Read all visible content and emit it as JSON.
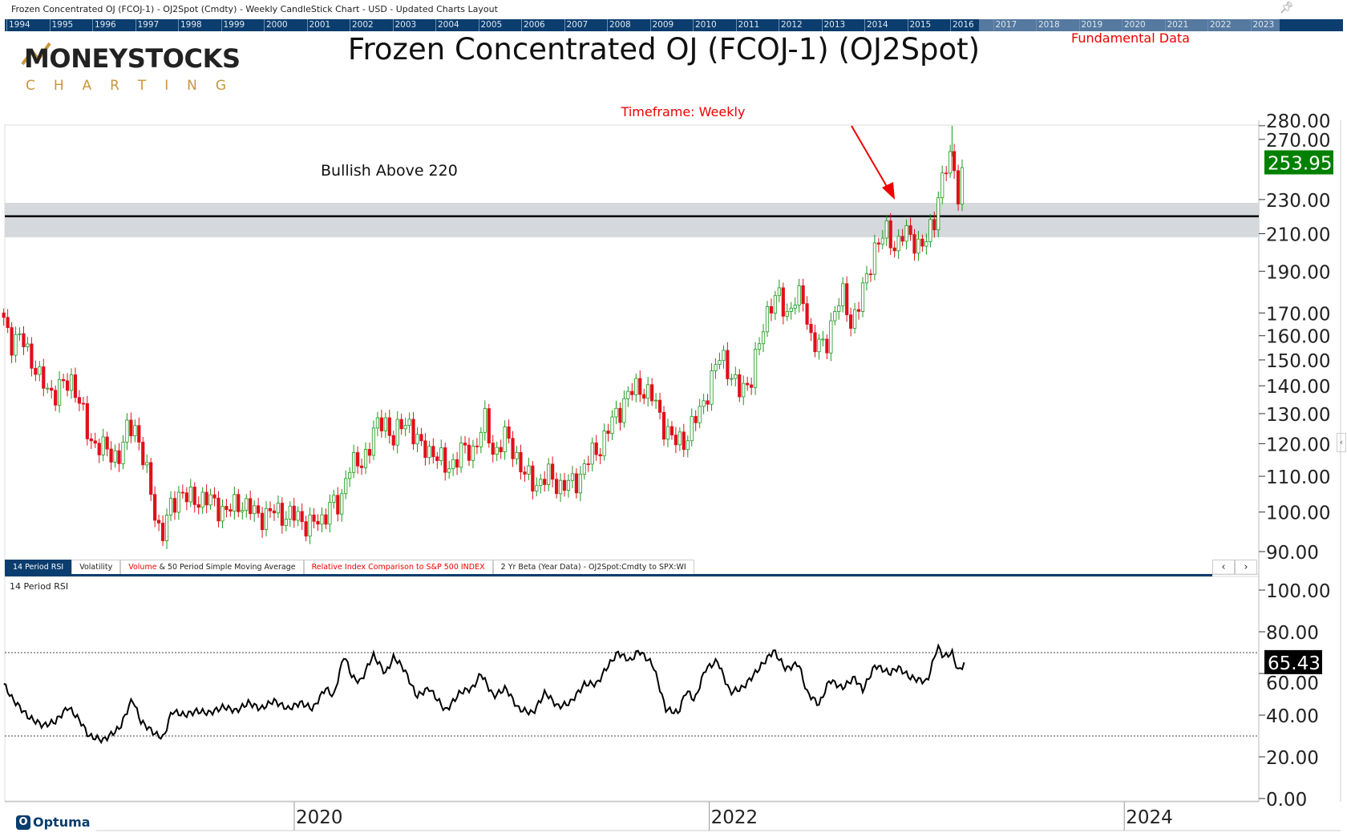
{
  "window_title": "Frozen Concentrated OJ (FCOJ-1) - OJ2Spot (Cmdty) - Weekly CandleStick Chart - USD - Updated Charts Layout",
  "navigator_years": [
    "1994",
    "1995",
    "1996",
    "1997",
    "1998",
    "1999",
    "2000",
    "2001",
    "2002",
    "2003",
    "2004",
    "2005",
    "2006",
    "2007",
    "2008",
    "2009",
    "2010",
    "2011",
    "2012",
    "2013",
    "2014",
    "2015",
    "2016",
    "2017",
    "2018",
    "2019",
    "2020",
    "2021",
    "2022",
    "2023"
  ],
  "logo": {
    "line1": "MONEYSTOCKS",
    "line2": "C H A R T I N G"
  },
  "main_title": "Frozen Concentrated OJ (FCOJ-1) (OJ2Spot)",
  "fundamental_link": "Fundamental Data",
  "timeframe": "Timeframe: Weekly",
  "annotation": "Bullish Above 220",
  "tabs": [
    {
      "label": "14 Period RSI",
      "active": true
    },
    {
      "label": "Volatility"
    },
    {
      "label_red": "Volume",
      "label": " & 50 Period Simple Moving Average"
    },
    {
      "label_red": "Relative Index Comparison to S&P 500 INDEX"
    },
    {
      "label": "2 Yr Beta (Year Data) - OJ2Spot:Cmdty to SPX:WI"
    }
  ],
  "rsi_panel_label": "14 Period RSI",
  "optuma": "Optuma",
  "colors": {
    "up": "#1a9a1a",
    "down": "#e0101a",
    "nav": "#0b3d6e",
    "price_tag": "#008000",
    "band": "#d5d8dc"
  },
  "chart_data": [
    {
      "type": "candlestick",
      "scale": "log",
      "ylim": [
        90,
        280
      ],
      "yticks": [
        "280.00",
        "270.00",
        "230.00",
        "210.00",
        "190.00",
        "170.00",
        "160.00",
        "150.00",
        "140.00",
        "130.00",
        "120.00",
        "110.00",
        "100.00",
        "90.00"
      ],
      "ytick_values": [
        280,
        270,
        230,
        210,
        190,
        170,
        160,
        150,
        140,
        130,
        120,
        110,
        100,
        90
      ],
      "last_price": "253.95",
      "support_line": 220,
      "support_band": [
        208,
        228
      ],
      "xticks": [
        "2020",
        "2022",
        "2024"
      ],
      "xtick_values": [
        2020,
        2022,
        2024
      ],
      "close_path": [
        [
          2018.6,
          168
        ],
        [
          2018.64,
          157
        ],
        [
          2018.7,
          158
        ],
        [
          2018.77,
          142
        ],
        [
          2018.85,
          137
        ],
        [
          2018.93,
          143
        ],
        [
          2018.97,
          132
        ],
        [
          2019.01,
          122
        ],
        [
          2019.08,
          118
        ],
        [
          2019.16,
          116
        ],
        [
          2019.2,
          125
        ],
        [
          2019.23,
          127
        ],
        [
          2019.26,
          118
        ],
        [
          2019.29,
          110
        ],
        [
          2019.33,
          100
        ],
        [
          2019.36,
          93
        ],
        [
          2019.41,
          102
        ],
        [
          2019.45,
          106
        ],
        [
          2019.49,
          103
        ],
        [
          2019.55,
          104
        ],
        [
          2019.62,
          102
        ],
        [
          2019.68,
          100
        ],
        [
          2019.74,
          103
        ],
        [
          2019.82,
          99
        ],
        [
          2019.91,
          100
        ],
        [
          2019.99,
          99
        ],
        [
          2020.07,
          97
        ],
        [
          2020.13,
          97
        ],
        [
          2020.17,
          103
        ],
        [
          2020.22,
          100
        ],
        [
          2020.26,
          115
        ],
        [
          2020.32,
          112
        ],
        [
          2020.38,
          124
        ],
        [
          2020.44,
          127
        ],
        [
          2020.48,
          122
        ],
        [
          2020.55,
          128
        ],
        [
          2020.61,
          118
        ],
        [
          2020.67,
          118
        ],
        [
          2020.73,
          112
        ],
        [
          2020.8,
          117
        ],
        [
          2020.86,
          118
        ],
        [
          2020.92,
          127
        ],
        [
          2020.96,
          117
        ],
        [
          2021.02,
          122
        ],
        [
          2021.06,
          118
        ],
        [
          2021.11,
          110
        ],
        [
          2021.17,
          108
        ],
        [
          2021.23,
          110
        ],
        [
          2021.29,
          107
        ],
        [
          2021.35,
          108
        ],
        [
          2021.42,
          115
        ],
        [
          2021.48,
          120
        ],
        [
          2021.54,
          128
        ],
        [
          2021.6,
          136
        ],
        [
          2021.67,
          140
        ],
        [
          2021.73,
          135
        ],
        [
          2021.77,
          128
        ],
        [
          2021.83,
          120
        ],
        [
          2021.89,
          122
        ],
        [
          2021.95,
          130
        ],
        [
          2022.0,
          140
        ],
        [
          2022.06,
          153
        ],
        [
          2022.1,
          145
        ],
        [
          2022.14,
          137
        ],
        [
          2022.2,
          143
        ],
        [
          2022.24,
          155
        ],
        [
          2022.29,
          175
        ],
        [
          2022.33,
          178
        ],
        [
          2022.37,
          168
        ],
        [
          2022.41,
          178
        ],
        [
          2022.45,
          175
        ],
        [
          2022.49,
          160
        ],
        [
          2022.56,
          153
        ],
        [
          2022.6,
          172
        ],
        [
          2022.64,
          178
        ],
        [
          2022.68,
          165
        ],
        [
          2022.72,
          175
        ],
        [
          2022.76,
          185
        ],
        [
          2022.8,
          205
        ],
        [
          2022.85,
          210
        ],
        [
          2022.89,
          203
        ],
        [
          2022.93,
          210
        ],
        [
          2022.97,
          207
        ],
        [
          2023.01,
          205
        ],
        [
          2023.05,
          205
        ],
        [
          2023.09,
          220
        ],
        [
          2023.11,
          240
        ],
        [
          2023.14,
          250
        ],
        [
          2023.17,
          255
        ],
        [
          2023.2,
          235
        ],
        [
          2023.23,
          254
        ]
      ]
    },
    {
      "type": "line",
      "title": "14 Period RSI",
      "ylim": [
        0,
        100
      ],
      "yticks": [
        "100.00",
        "80.00",
        "60.00",
        "40.00",
        "20.00",
        "0.00"
      ],
      "ytick_values": [
        100,
        80,
        60,
        40,
        20,
        0
      ],
      "levels": [
        70,
        30
      ],
      "last_value": "65.43",
      "points": [
        [
          2018.6,
          55
        ],
        [
          2018.64,
          48
        ],
        [
          2018.72,
          39
        ],
        [
          2018.79,
          35
        ],
        [
          2018.85,
          37
        ],
        [
          2018.91,
          44
        ],
        [
          2018.97,
          37
        ],
        [
          2019.01,
          30
        ],
        [
          2019.08,
          28
        ],
        [
          2019.12,
          31
        ],
        [
          2019.16,
          34
        ],
        [
          2019.22,
          48
        ],
        [
          2019.26,
          37
        ],
        [
          2019.33,
          31
        ],
        [
          2019.37,
          29
        ],
        [
          2019.41,
          42
        ],
        [
          2019.47,
          40
        ],
        [
          2019.53,
          42
        ],
        [
          2019.59,
          41
        ],
        [
          2019.66,
          44
        ],
        [
          2019.72,
          42
        ],
        [
          2019.78,
          46
        ],
        [
          2019.84,
          43
        ],
        [
          2019.9,
          47
        ],
        [
          2019.97,
          43
        ],
        [
          2020.03,
          46
        ],
        [
          2020.09,
          43
        ],
        [
          2020.15,
          53
        ],
        [
          2020.19,
          49
        ],
        [
          2020.24,
          69
        ],
        [
          2020.28,
          58
        ],
        [
          2020.32,
          56
        ],
        [
          2020.38,
          69
        ],
        [
          2020.44,
          60
        ],
        [
          2020.48,
          68
        ],
        [
          2020.53,
          62
        ],
        [
          2020.59,
          49
        ],
        [
          2020.65,
          53
        ],
        [
          2020.73,
          42
        ],
        [
          2020.8,
          51
        ],
        [
          2020.86,
          53
        ],
        [
          2020.9,
          60
        ],
        [
          2020.96,
          49
        ],
        [
          2021.02,
          53
        ],
        [
          2021.08,
          43
        ],
        [
          2021.15,
          41
        ],
        [
          2021.21,
          51
        ],
        [
          2021.27,
          44
        ],
        [
          2021.33,
          46
        ],
        [
          2021.4,
          55
        ],
        [
          2021.46,
          55
        ],
        [
          2021.5,
          62
        ],
        [
          2021.56,
          70
        ],
        [
          2021.62,
          66
        ],
        [
          2021.66,
          71
        ],
        [
          2021.73,
          64
        ],
        [
          2021.79,
          43
        ],
        [
          2021.85,
          41
        ],
        [
          2021.89,
          52
        ],
        [
          2021.93,
          47
        ],
        [
          2021.98,
          62
        ],
        [
          2022.04,
          66
        ],
        [
          2022.1,
          51
        ],
        [
          2022.16,
          53
        ],
        [
          2022.22,
          60
        ],
        [
          2022.31,
          71
        ],
        [
          2022.37,
          62
        ],
        [
          2022.43,
          65
        ],
        [
          2022.47,
          51
        ],
        [
          2022.53,
          45
        ],
        [
          2022.58,
          57
        ],
        [
          2022.64,
          53
        ],
        [
          2022.7,
          58
        ],
        [
          2022.74,
          52
        ],
        [
          2022.8,
          64
        ],
        [
          2022.87,
          60
        ],
        [
          2022.91,
          63
        ],
        [
          2022.97,
          58
        ],
        [
          2023.05,
          56
        ],
        [
          2023.1,
          73
        ],
        [
          2023.13,
          68
        ],
        [
          2023.17,
          70
        ],
        [
          2023.2,
          61
        ],
        [
          2023.23,
          65
        ]
      ]
    }
  ]
}
